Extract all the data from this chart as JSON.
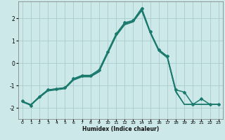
{
  "title": "",
  "xlabel": "Humidex (Indice chaleur)",
  "ylabel": "",
  "background_color": "#cce8e8",
  "grid_color": "#aacccc",
  "line_color": "#1a7a6e",
  "xlim": [
    -0.5,
    23.5
  ],
  "ylim": [
    -2.5,
    2.75
  ],
  "xticks": [
    0,
    1,
    2,
    3,
    4,
    5,
    6,
    7,
    8,
    9,
    10,
    11,
    12,
    13,
    14,
    15,
    16,
    17,
    18,
    19,
    20,
    21,
    22,
    23
  ],
  "yticks": [
    -2,
    -1,
    0,
    1,
    2
  ],
  "lines": [
    {
      "x": [
        0,
        1,
        2,
        3,
        4,
        5,
        6,
        7,
        8,
        9,
        10,
        11,
        12,
        13,
        14,
        15,
        16,
        17,
        18,
        19,
        20,
        21,
        22,
        23
      ],
      "y": [
        -1.7,
        -1.9,
        -1.5,
        -1.2,
        -1.15,
        -1.1,
        -0.7,
        -0.55,
        -0.55,
        -0.3,
        0.5,
        1.3,
        1.8,
        1.9,
        2.45,
        1.4,
        0.6,
        0.3,
        -1.2,
        -1.3,
        -1.85,
        -1.6,
        -1.85,
        -1.85
      ],
      "marker": "D",
      "markersize": 2.0,
      "linewidth": 1.1
    },
    {
      "x": [
        0,
        1,
        2,
        3,
        4,
        5,
        6,
        7,
        8,
        9,
        10,
        11,
        12,
        13,
        14,
        15,
        16,
        17,
        18,
        19,
        20,
        21,
        22,
        23
      ],
      "y": [
        -1.7,
        -1.85,
        -1.5,
        -1.2,
        -1.15,
        -1.1,
        -0.72,
        -0.58,
        -0.58,
        -0.35,
        0.45,
        1.25,
        1.75,
        1.88,
        2.38,
        1.38,
        0.58,
        0.28,
        -1.25,
        -1.85,
        -1.85,
        -1.85,
        -1.85,
        -1.85
      ],
      "marker": null,
      "linewidth": 0.9
    },
    {
      "x": [
        0,
        1,
        2,
        3,
        4,
        5,
        6,
        7,
        8,
        9,
        10,
        11,
        12,
        13,
        14,
        15,
        16,
        17,
        18,
        19,
        20,
        21,
        22,
        23
      ],
      "y": [
        -1.72,
        -1.87,
        -1.52,
        -1.22,
        -1.17,
        -1.12,
        -0.74,
        -0.6,
        -0.6,
        -0.37,
        0.43,
        1.23,
        1.73,
        1.86,
        2.36,
        1.36,
        0.56,
        0.26,
        -1.27,
        -1.85,
        -1.85,
        -1.85,
        -1.85,
        -1.85
      ],
      "marker": null,
      "linewidth": 0.9
    },
    {
      "x": [
        0,
        1,
        2,
        3,
        4,
        5,
        6,
        7,
        8,
        9,
        10,
        11,
        12,
        13,
        14,
        15,
        16,
        17,
        18,
        19,
        20,
        21,
        22,
        23
      ],
      "y": [
        -1.75,
        -1.88,
        -1.55,
        -1.25,
        -1.2,
        -1.15,
        -0.77,
        -0.62,
        -0.62,
        -0.4,
        0.4,
        1.2,
        1.7,
        1.83,
        2.33,
        1.33,
        0.53,
        0.23,
        -1.3,
        -1.85,
        -1.85,
        -1.85,
        -1.85,
        -1.85
      ],
      "marker": null,
      "linewidth": 0.9
    }
  ]
}
